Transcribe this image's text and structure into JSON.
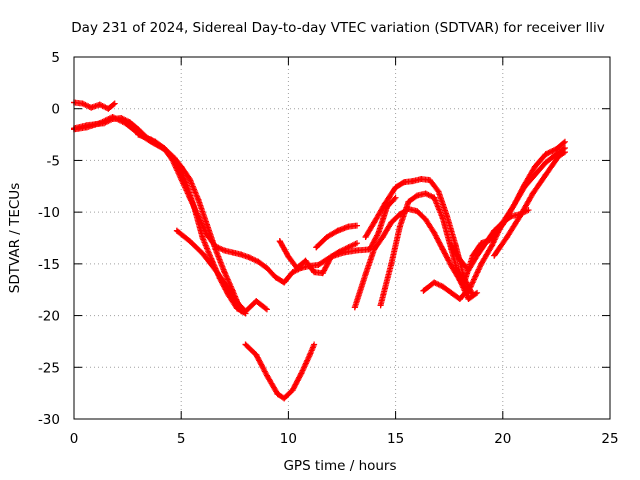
{
  "chart_data": {
    "type": "scatter",
    "title": "Day 231 of 2024, Sidereal Day-to-day VTEC variation (SDTVAR) for receiver lliv",
    "xlabel": "GPS time / hours",
    "ylabel": "SDTVAR / TECUs",
    "xlim": [
      0,
      25
    ],
    "ylim": [
      -30,
      5
    ],
    "xticks": [
      0,
      5,
      10,
      15,
      20,
      25
    ],
    "yticks": [
      5,
      0,
      -5,
      -10,
      -15,
      -20,
      -25,
      -30
    ],
    "grid": true,
    "marker": "+",
    "color": "#ff0000",
    "series": [
      {
        "x": [
          0,
          0.4,
          0.8,
          1.2,
          1.6,
          1.9
        ],
        "y": [
          0.6,
          0.5,
          0.1,
          0.4,
          0.0,
          0.5
        ]
      },
      {
        "x": [
          0,
          0.6,
          1.0,
          1.4,
          1.8,
          2.2,
          2.6,
          3.0,
          3.4,
          3.8,
          4.2,
          4.6,
          5.0,
          5.4,
          5.8,
          6.2,
          6.6,
          7.0,
          7.4,
          7.8,
          8.2,
          8.6,
          9.0,
          9.4,
          9.8,
          10.2,
          10.6,
          11.0,
          11.4,
          12.0,
          12.6,
          13.2,
          13.8,
          14.2,
          14.6,
          15.0
        ],
        "y": [
          -1.9,
          -1.6,
          -1.5,
          -1.4,
          -1.0,
          -0.9,
          -1.3,
          -2.0,
          -2.8,
          -3.2,
          -3.8,
          -5.0,
          -6.8,
          -8.6,
          -10.4,
          -12.2,
          -13.3,
          -13.7,
          -13.9,
          -14.1,
          -14.4,
          -14.8,
          -15.4,
          -16.3,
          -16.8,
          -15.8,
          -15.4,
          -15.2,
          -15.1,
          -14.3,
          -13.9,
          -13.7,
          -13.6,
          -12.0,
          -9.5,
          -8.6
        ]
      },
      {
        "x": [
          0,
          0.6,
          1.2,
          1.8,
          2.4,
          3.0,
          3.6,
          4.2,
          4.8,
          5.2,
          5.6,
          6.0,
          6.4,
          6.8,
          7.2,
          7.6,
          8.0
        ],
        "y": [
          -2.0,
          -1.8,
          -1.4,
          -0.8,
          -1.4,
          -2.4,
          -3.2,
          -3.9,
          -5.2,
          -7.0,
          -9.5,
          -12.5,
          -14.5,
          -16.4,
          -18.0,
          -19.3,
          -19.8
        ]
      },
      {
        "x": [
          3.0,
          3.6,
          4.2,
          4.7,
          5.0,
          5.4,
          5.8,
          6.2,
          6.6,
          7.0,
          7.4,
          7.8
        ],
        "y": [
          -2.5,
          -3.0,
          -3.8,
          -4.8,
          -5.6,
          -6.8,
          -8.8,
          -11.2,
          -13.6,
          -15.7,
          -17.6,
          -19.6
        ]
      },
      {
        "x": [
          4.8,
          5.4,
          6.0,
          6.6,
          7.2,
          7.6,
          8.0,
          8.5,
          9.0
        ],
        "y": [
          -11.8,
          -12.8,
          -14.0,
          -15.6,
          -17.4,
          -18.7,
          -19.6,
          -18.6,
          -19.4
        ]
      },
      {
        "x": [
          8.0,
          8.5,
          9.0,
          9.5,
          9.8,
          10.2,
          10.6,
          11.0,
          11.2
        ],
        "y": [
          -22.8,
          -23.8,
          -25.8,
          -27.6,
          -28.0,
          -27.2,
          -25.6,
          -23.8,
          -22.8
        ]
      },
      {
        "x": [
          9.6,
          10.0,
          10.4,
          10.8,
          11.2,
          11.6,
          12.0,
          12.4,
          12.8,
          13.2
        ],
        "y": [
          -12.8,
          -14.3,
          -15.4,
          -14.7,
          -15.8,
          -15.9,
          -14.3,
          -13.8,
          -13.4,
          -13.0
        ]
      },
      {
        "x": [
          11.3,
          11.8,
          12.3,
          12.8,
          13.2
        ],
        "y": [
          -13.4,
          -12.4,
          -11.8,
          -11.4,
          -11.3
        ]
      },
      {
        "x": [
          13.1,
          13.6,
          14.0,
          14.4,
          14.8,
          15.2,
          15.6,
          16.0,
          16.4,
          16.8,
          17.2,
          17.6,
          18.0,
          18.4
        ],
        "y": [
          -19.2,
          -16.0,
          -13.6,
          -12.4,
          -11.0,
          -10.2,
          -9.7,
          -9.9,
          -10.7,
          -12.0,
          -13.6,
          -15.2,
          -16.6,
          -17.8
        ]
      },
      {
        "x": [
          13.6,
          14.0,
          14.5,
          15.0,
          15.4,
          15.8,
          16.2,
          16.6,
          17.0,
          17.4,
          17.8,
          18.2,
          18.6
        ],
        "y": [
          -12.4,
          -11.0,
          -9.2,
          -7.6,
          -7.1,
          -7.0,
          -6.8,
          -6.9,
          -8.0,
          -10.4,
          -13.2,
          -16.4,
          -18.0
        ]
      },
      {
        "x": [
          14.3,
          14.8,
          15.2,
          15.6,
          16.0,
          16.4,
          16.8,
          17.2,
          17.6,
          18.0,
          18.4,
          18.8
        ],
        "y": [
          -19.0,
          -15.0,
          -11.4,
          -9.0,
          -8.4,
          -8.2,
          -8.6,
          -10.6,
          -13.6,
          -16.6,
          -18.4,
          -17.8
        ]
      },
      {
        "x": [
          16.3,
          16.8,
          17.2,
          17.6,
          18.0,
          18.5,
          19.0,
          19.5,
          20.0,
          20.5,
          21.0,
          21.5,
          22.0,
          22.5,
          22.9
        ],
        "y": [
          -17.6,
          -16.8,
          -17.2,
          -17.8,
          -18.4,
          -17.2,
          -15.0,
          -13.2,
          -11.0,
          -9.4,
          -7.4,
          -5.6,
          -4.4,
          -3.9,
          -3.2
        ]
      },
      {
        "x": [
          17.8,
          18.2,
          18.6,
          19.0,
          19.5,
          20.0,
          20.5,
          21.0,
          21.5,
          22.0,
          22.5,
          22.9
        ],
        "y": [
          -15.4,
          -16.8,
          -14.2,
          -13.0,
          -12.6,
          -11.2,
          -9.4,
          -7.6,
          -6.4,
          -5.2,
          -4.4,
          -3.8
        ]
      },
      {
        "x": [
          17.6,
          18.0,
          18.4,
          18.8,
          19.2,
          19.6,
          20.0,
          20.4,
          20.8,
          21.2
        ],
        "y": [
          -13.2,
          -14.6,
          -15.6,
          -14.2,
          -13.0,
          -11.8,
          -11.0,
          -10.4,
          -10.2,
          -9.8
        ]
      },
      {
        "x": [
          19.6,
          20.2,
          20.8,
          21.4,
          22.0,
          22.6,
          22.9
        ],
        "y": [
          -14.2,
          -12.4,
          -10.4,
          -8.2,
          -6.4,
          -4.6,
          -4.2
        ]
      }
    ]
  }
}
